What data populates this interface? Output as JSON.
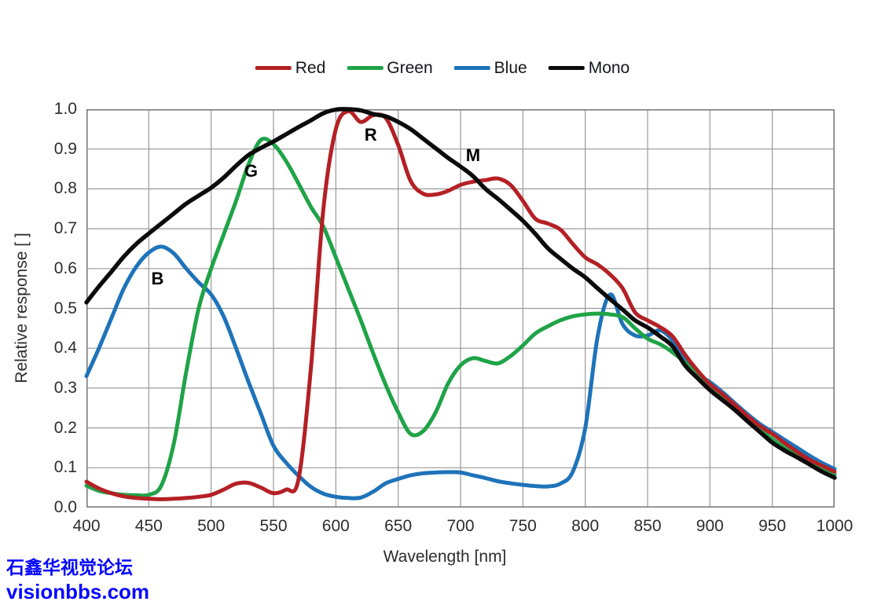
{
  "watermark": {
    "line1": "石鑫华视觉论坛",
    "line2": "visionbbs.com",
    "color": "#0505FF"
  },
  "colors": {
    "grid": "#9A9A9A",
    "border": "#7D7D7D",
    "tick_text": "#2D2D2D",
    "annotation_text": "#000000"
  },
  "chart_data": {
    "type": "line",
    "title": "",
    "xlabel": "Wavelength [nm]",
    "ylabel": "Relative response [ ]",
    "xlim": [
      400,
      1000
    ],
    "ylim": [
      0.0,
      1.0
    ],
    "grid": true,
    "x_ticks": [
      400,
      450,
      500,
      550,
      600,
      650,
      700,
      750,
      800,
      850,
      900,
      950,
      1000
    ],
    "y_tick_labels": [
      "0.0",
      "0.1",
      "0.2",
      "0.3",
      "0.4",
      "0.5",
      "0.6",
      "0.7",
      "0.8",
      "0.9",
      "1.0"
    ],
    "legend": {
      "position": "top",
      "entries": [
        "Red",
        "Green",
        "Blue",
        "Mono"
      ]
    },
    "x": [
      400,
      410,
      420,
      430,
      440,
      450,
      460,
      470,
      480,
      490,
      500,
      510,
      520,
      530,
      540,
      550,
      560,
      570,
      580,
      590,
      600,
      610,
      620,
      630,
      640,
      650,
      660,
      670,
      680,
      690,
      700,
      710,
      720,
      730,
      740,
      750,
      760,
      770,
      780,
      790,
      800,
      810,
      820,
      830,
      840,
      850,
      860,
      870,
      880,
      890,
      900,
      910,
      920,
      930,
      940,
      950,
      960,
      970,
      980,
      990,
      1000
    ],
    "series": [
      {
        "name": "Red",
        "color": "#B42025",
        "values": [
          0.065,
          0.048,
          0.036,
          0.028,
          0.024,
          0.022,
          0.021,
          0.022,
          0.024,
          0.027,
          0.032,
          0.045,
          0.06,
          0.062,
          0.05,
          0.036,
          0.045,
          0.07,
          0.35,
          0.75,
          0.95,
          0.995,
          0.968,
          0.985,
          0.978,
          0.91,
          0.82,
          0.788,
          0.786,
          0.795,
          0.81,
          0.818,
          0.822,
          0.826,
          0.81,
          0.77,
          0.725,
          0.713,
          0.698,
          0.662,
          0.628,
          0.61,
          0.585,
          0.55,
          0.49,
          0.47,
          0.453,
          0.43,
          0.384,
          0.344,
          0.31,
          0.285,
          0.258,
          0.23,
          0.205,
          0.185,
          0.162,
          0.14,
          0.12,
          0.105,
          0.09
        ]
      },
      {
        "name": "Green",
        "color": "#1FA347",
        "values": [
          0.055,
          0.042,
          0.036,
          0.032,
          0.031,
          0.032,
          0.055,
          0.16,
          0.34,
          0.5,
          0.6,
          0.685,
          0.77,
          0.862,
          0.923,
          0.912,
          0.87,
          0.814,
          0.755,
          0.705,
          0.628,
          0.549,
          0.47,
          0.387,
          0.308,
          0.239,
          0.185,
          0.192,
          0.239,
          0.311,
          0.357,
          0.375,
          0.368,
          0.362,
          0.38,
          0.407,
          0.437,
          0.455,
          0.47,
          0.48,
          0.485,
          0.487,
          0.485,
          0.478,
          0.45,
          0.424,
          0.41,
          0.39,
          0.364,
          0.33,
          0.3,
          0.275,
          0.25,
          0.222,
          0.195,
          0.172,
          0.15,
          0.132,
          0.113,
          0.097,
          0.082
        ]
      },
      {
        "name": "Blue",
        "color": "#1E73B9",
        "values": [
          0.33,
          0.4,
          0.475,
          0.55,
          0.605,
          0.64,
          0.655,
          0.638,
          0.6,
          0.565,
          0.535,
          0.48,
          0.4,
          0.315,
          0.235,
          0.155,
          0.113,
          0.08,
          0.052,
          0.035,
          0.027,
          0.024,
          0.025,
          0.04,
          0.061,
          0.072,
          0.081,
          0.086,
          0.088,
          0.089,
          0.088,
          0.081,
          0.074,
          0.066,
          0.061,
          0.057,
          0.054,
          0.053,
          0.06,
          0.09,
          0.2,
          0.43,
          0.535,
          0.46,
          0.432,
          0.432,
          0.445,
          0.42,
          0.37,
          0.335,
          0.315,
          0.29,
          0.262,
          0.235,
          0.21,
          0.19,
          0.17,
          0.15,
          0.13,
          0.112,
          0.097
        ]
      },
      {
        "name": "Mono",
        "color": "#0B0B0B",
        "values": [
          0.515,
          0.555,
          0.592,
          0.63,
          0.662,
          0.688,
          0.713,
          0.738,
          0.763,
          0.783,
          0.803,
          0.828,
          0.858,
          0.885,
          0.903,
          0.919,
          0.937,
          0.955,
          0.972,
          0.99,
          0.999,
          1.0,
          0.997,
          0.988,
          0.982,
          0.968,
          0.95,
          0.926,
          0.902,
          0.878,
          0.856,
          0.832,
          0.8,
          0.775,
          0.748,
          0.72,
          0.687,
          0.651,
          0.625,
          0.6,
          0.578,
          0.55,
          0.523,
          0.497,
          0.47,
          0.452,
          0.43,
          0.405,
          0.357,
          0.325,
          0.295,
          0.27,
          0.245,
          0.217,
          0.19,
          0.163,
          0.143,
          0.126,
          0.108,
          0.09,
          0.075
        ]
      }
    ],
    "annotations": [
      {
        "text": "R",
        "x": 628,
        "y": 0.935
      },
      {
        "text": "G",
        "x": 532,
        "y": 0.845
      },
      {
        "text": "B",
        "x": 457,
        "y": 0.573
      },
      {
        "text": "M",
        "x": 710,
        "y": 0.883
      }
    ]
  }
}
